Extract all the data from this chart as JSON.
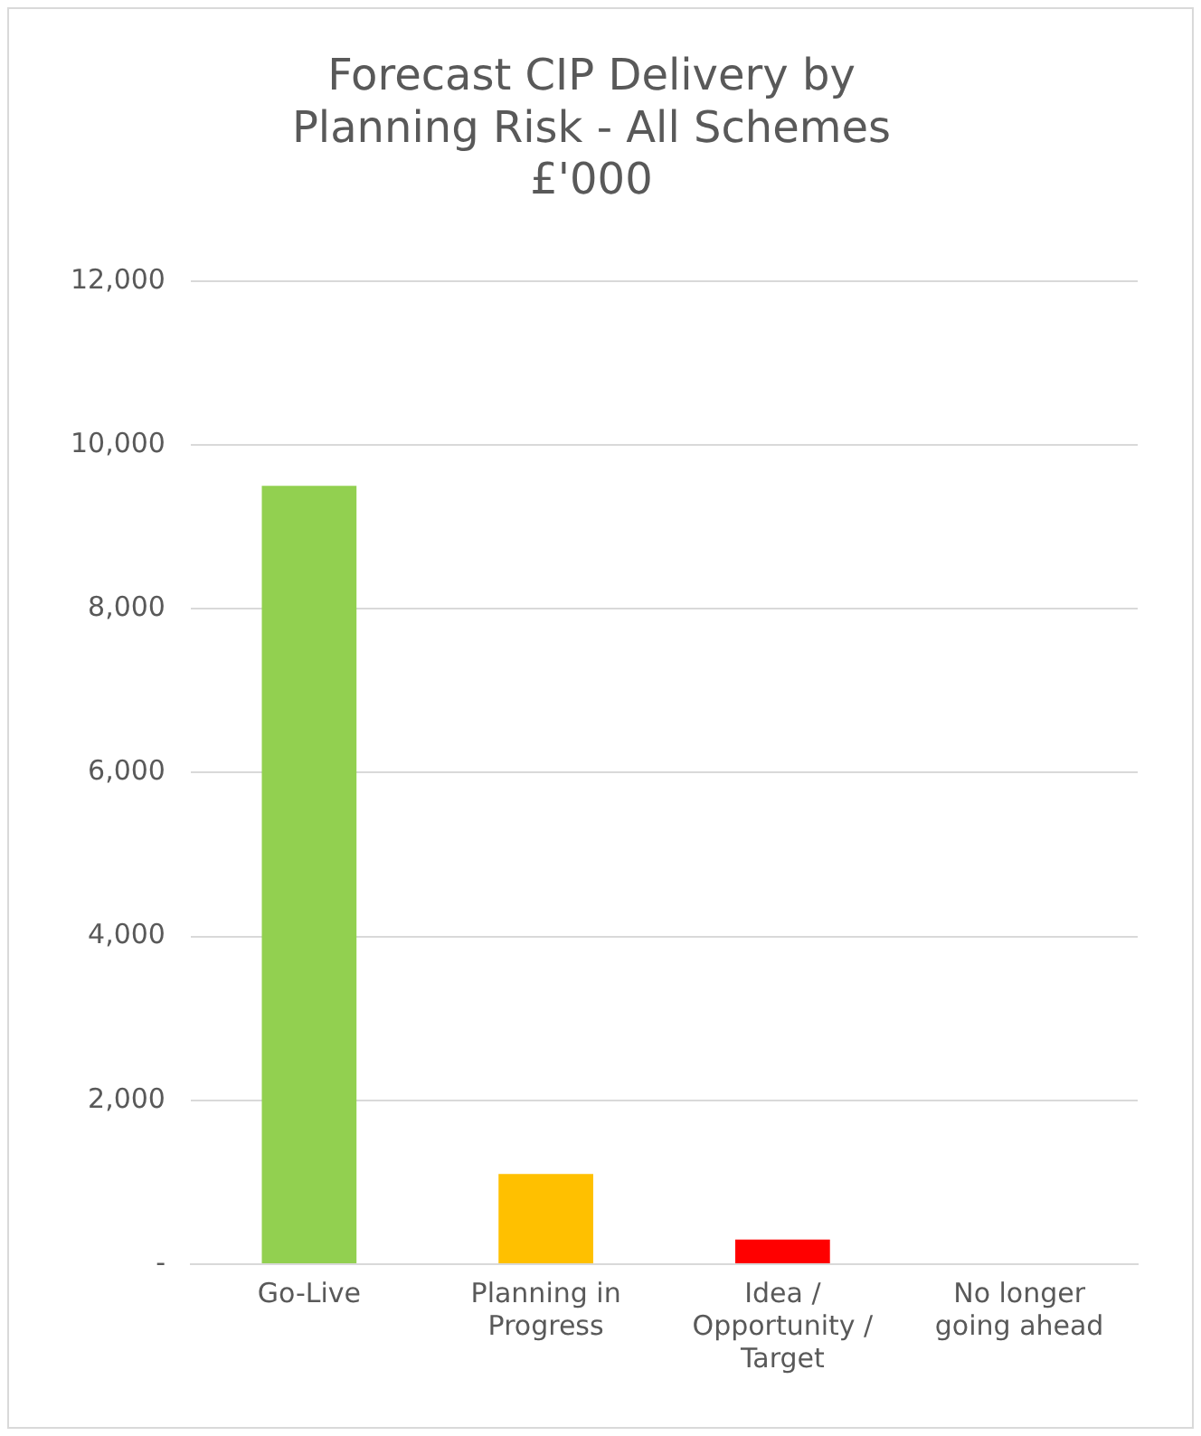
{
  "chart_data": {
    "type": "bar",
    "title": "Forecast CIP Delivery by Planning Risk  - All Schemes £'000",
    "categories": [
      "Go-Live",
      "Planning in Progress",
      "Idea / Opportunity / Target",
      "No longer going ahead"
    ],
    "values": [
      9500,
      1100,
      300,
      0
    ],
    "colors": [
      "#92d050",
      "#ffc000",
      "#ff0000",
      "#a5a5a5"
    ],
    "ylim": [
      0,
      12000
    ],
    "yticks": [
      {
        "value": 0,
        "label": "-"
      },
      {
        "value": 2000,
        "label": "2,000"
      },
      {
        "value": 4000,
        "label": "4,000"
      },
      {
        "value": 6000,
        "label": "6,000"
      },
      {
        "value": 8000,
        "label": "8,000"
      },
      {
        "value": 10000,
        "label": "10,000"
      },
      {
        "value": 12000,
        "label": "12,000"
      }
    ],
    "grid": "y",
    "legend": false
  }
}
